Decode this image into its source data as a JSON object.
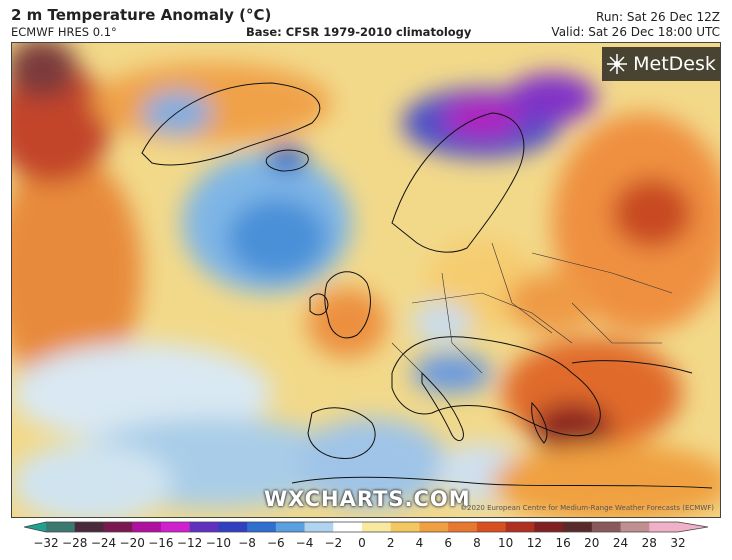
{
  "header": {
    "title": "2 m Temperature Anomaly (°C)",
    "model": "ECMWF HRES 0.1°",
    "base": "Base: CFSR 1979-2010 climatology",
    "run": "Run: Sat 26 Dec 12Z",
    "valid": "Valid: Sat 26 Dec 18:00 UTC"
  },
  "logo": {
    "text": "MetDesk",
    "icon": "metdesk-star-icon"
  },
  "watermark": "WXCHARTS.COM",
  "copyright": "©2020 European Centre for Medium-Range Weather Forecasts (ECMWF)",
  "colorbar": {
    "ticks": [
      "−32",
      "−28",
      "−24",
      "−20",
      "−16",
      "−12",
      "−10",
      "−8",
      "−6",
      "−4",
      "−2",
      "0",
      "2",
      "4",
      "6",
      "8",
      "10",
      "12",
      "16",
      "20",
      "24",
      "28",
      "32"
    ],
    "colors": [
      "#20a090",
      "#3a7a70",
      "#4a2a3a",
      "#7a1850",
      "#b010a0",
      "#d020d0",
      "#6030c0",
      "#3040c0",
      "#2f6fd0",
      "#5a9fe0",
      "#b0d4f0",
      "#ffffff",
      "#f7e9a0",
      "#f4c860",
      "#f0a040",
      "#e87830",
      "#d85020",
      "#b03020",
      "#802020",
      "#5a2a2a",
      "#8a5a5a",
      "#c09090",
      "#f0b0c8"
    ]
  }
}
